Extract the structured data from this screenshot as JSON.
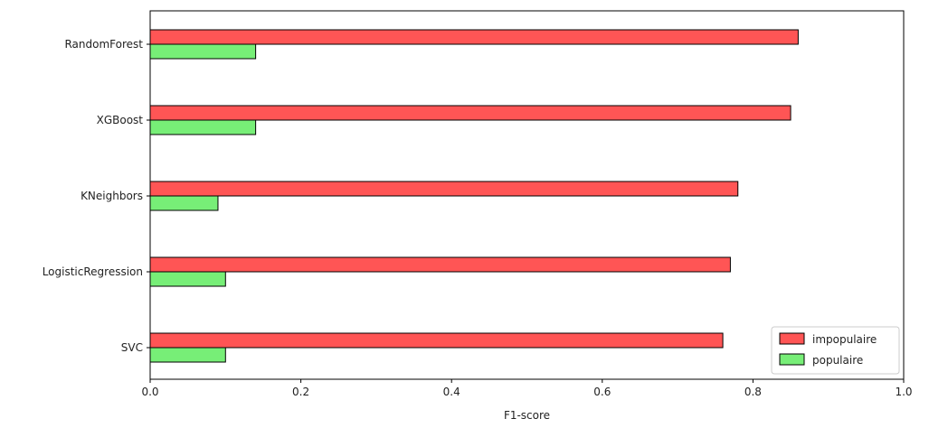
{
  "chart_data": {
    "type": "bar",
    "orientation": "horizontal",
    "categories": [
      "RandomForest",
      "XGBoost",
      "KNeighbors",
      "LogisticRegression",
      "SVC"
    ],
    "series": [
      {
        "name": "impopulaire",
        "color": "#ff5555",
        "values": [
          0.86,
          0.85,
          0.78,
          0.77,
          0.76
        ]
      },
      {
        "name": "populaire",
        "color": "#77ee77",
        "values": [
          0.14,
          0.14,
          0.09,
          0.1,
          0.1
        ]
      }
    ],
    "xlabel": "F1-score",
    "ylabel": "",
    "xlim": [
      0,
      1.0
    ],
    "xticks": [
      "0.0",
      "0.2",
      "0.4",
      "0.6",
      "0.8",
      "1.0"
    ],
    "grid": false,
    "legend_position": "bottom-right"
  }
}
